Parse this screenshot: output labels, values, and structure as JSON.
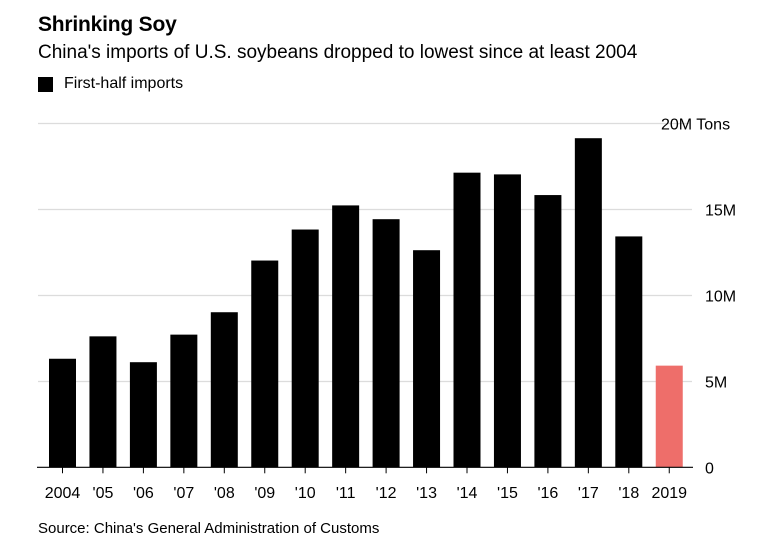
{
  "header": {
    "title": "Shrinking Soy",
    "subtitle": "China's imports of U.S. soybeans dropped to lowest since at least 2004"
  },
  "legend": {
    "label": "First-half imports",
    "color": "#000000"
  },
  "source": "Source: China's General Administration of Customs",
  "chart_data": {
    "type": "bar",
    "title": "Shrinking Soy",
    "subtitle": "China's imports of U.S. soybeans dropped to lowest since at least 2004",
    "xlabel": "",
    "ylabel": "Tons",
    "categories": [
      "2004",
      "'05",
      "'06",
      "'07",
      "'08",
      "'09",
      "'10",
      "'11",
      "'12",
      "'13",
      "'14",
      "'15",
      "'16",
      "'17",
      "'18",
      "2019"
    ],
    "series": [
      {
        "name": "First-half imports",
        "unit": "M Tons",
        "values": [
          6.3,
          7.6,
          6.1,
          7.7,
          9.0,
          12.0,
          13.8,
          15.2,
          14.4,
          12.6,
          17.1,
          17.0,
          15.8,
          19.1,
          13.4,
          5.9
        ],
        "color": "#000000",
        "highlight": {
          "category": "2019",
          "color": "#ee6e6a"
        }
      }
    ],
    "ylim": [
      0,
      20
    ],
    "yticks": [
      0,
      5,
      10,
      15,
      20
    ],
    "ytick_labels": [
      "0",
      "5M",
      "10M",
      "15M",
      "20M Tons"
    ],
    "y_axis_side": "right",
    "grid": true,
    "gridline_color": "#dcdcdc",
    "legend_position": "top-left"
  }
}
